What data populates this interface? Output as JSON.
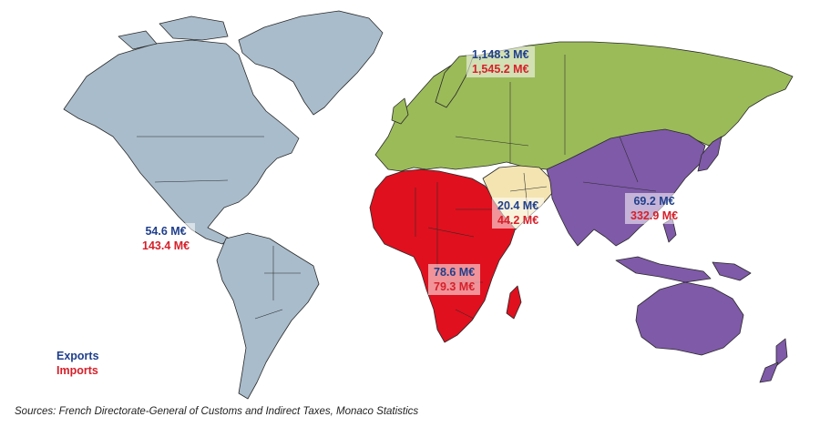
{
  "colors": {
    "americas": "#a9bccb",
    "europe_russia": "#9bbb59",
    "africa": "#e0101e",
    "middle_east": "#f3e4b2",
    "asia_oceania": "#7f5aa8"
  },
  "regions": [
    {
      "id": "americas",
      "exports": "54.6 M€",
      "imports": "143.4 M€"
    },
    {
      "id": "europe_russia",
      "exports": "1,148.3  M€",
      "imports": "1,545.2 M€"
    },
    {
      "id": "middle_east",
      "exports": "20.4 M€",
      "imports": "44.2 M€"
    },
    {
      "id": "asia_oceania",
      "exports": "69.2 M€",
      "imports": "332.9 M€"
    },
    {
      "id": "africa",
      "exports": "78.6  M€",
      "imports": "79.3 M€"
    }
  ],
  "legend": {
    "exports_label": "Exports",
    "imports_label": "Imports"
  },
  "source": "Sources: French Directorate-General of Customs and Indirect Taxes, Monaco Statistics"
}
